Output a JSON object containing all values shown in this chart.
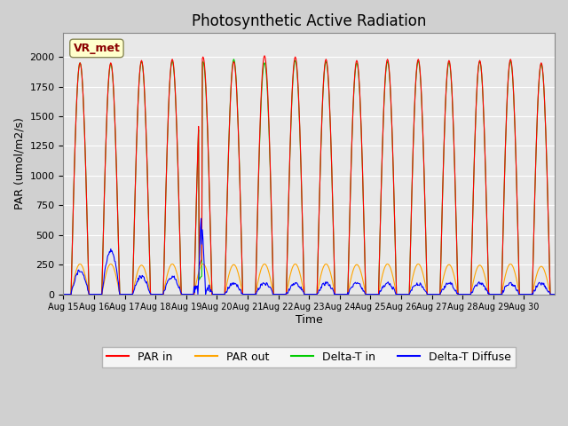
{
  "title": "Photosynthetic Active Radiation",
  "ylabel": "PAR (umol/m2/s)",
  "xlabel": "Time",
  "ylim": [
    0,
    2200
  ],
  "xtick_labels": [
    "Aug 15",
    "Aug 16",
    "Aug 17",
    "Aug 18",
    "Aug 19",
    "Aug 20",
    "Aug 21",
    "Aug 22",
    "Aug 23",
    "Aug 24",
    "Aug 25",
    "Aug 26",
    "Aug 27",
    "Aug 28",
    "Aug 29",
    "Aug 30"
  ],
  "background_color": "#e8e8e8",
  "annotation_text": "VR_met",
  "annotation_box_color": "#ffffcc",
  "annotation_text_color": "#8b0000",
  "colors": {
    "PAR_in": "#ff0000",
    "PAR_out": "#ffa500",
    "Delta_T_in": "#00cc00",
    "Delta_T_diffuse": "#0000ff"
  },
  "legend_labels": [
    "PAR in",
    "PAR out",
    "Delta-T in",
    "Delta-T Diffuse"
  ],
  "num_days": 16,
  "peak_PAR_in": [
    1950,
    1950,
    1970,
    1980,
    2000,
    1960,
    2010,
    2000,
    1980,
    1970,
    1980,
    1980,
    1970,
    1970,
    1980,
    1950
  ],
  "peak_PAR_out": [
    255,
    255,
    245,
    255,
    255,
    250,
    255,
    255,
    255,
    250,
    255,
    255,
    250,
    245,
    255,
    235
  ],
  "peak_Delta_T": [
    1950,
    1940,
    1960,
    1965,
    1960,
    1980,
    1950,
    1970,
    1960,
    1950,
    1960,
    1965,
    1955,
    1960,
    1965,
    1940
  ],
  "anomaly_day": 4,
  "anomaly_blue_peak": 700,
  "blue_peaks": [
    200,
    370,
    150,
    150,
    700,
    90,
    90,
    90,
    90,
    90,
    90,
    90,
    90,
    90,
    90,
    90
  ]
}
